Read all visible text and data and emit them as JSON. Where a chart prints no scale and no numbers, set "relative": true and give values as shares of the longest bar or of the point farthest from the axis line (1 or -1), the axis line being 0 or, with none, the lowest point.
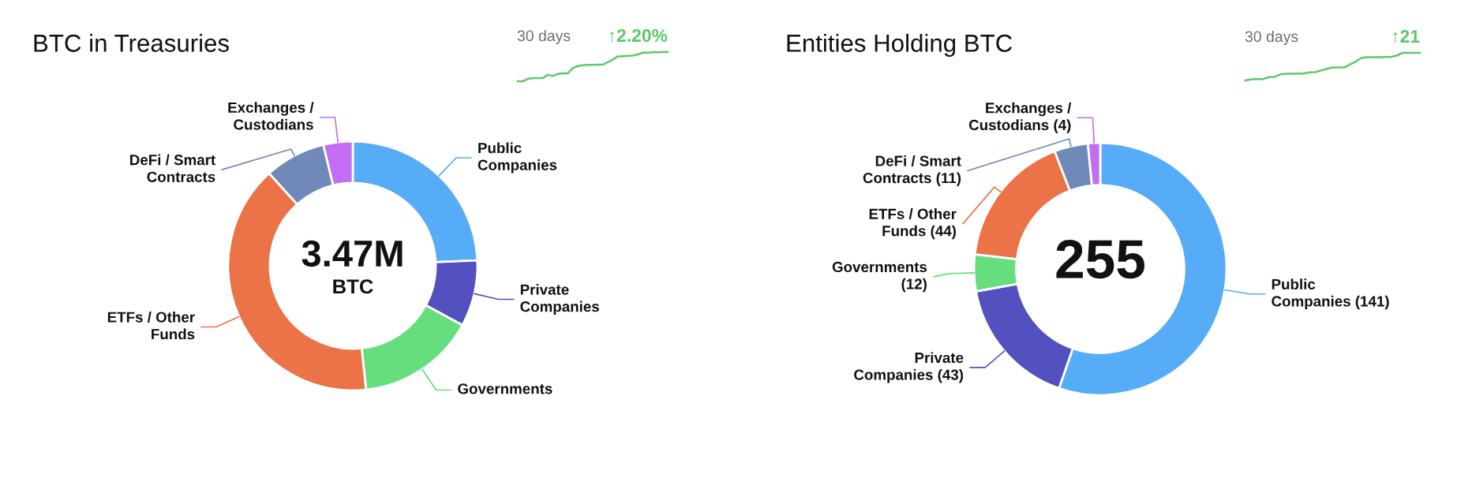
{
  "chart_data": [
    {
      "type": "other",
      "title": "BTC in Treasuries"
    },
    {
      "type": "line",
      "title": "30 days",
      "relative": true,
      "categories": [
        null,
        null,
        null,
        null,
        null,
        null,
        null,
        null,
        null,
        null,
        null,
        null,
        null,
        null,
        null,
        null,
        null,
        null,
        null,
        null,
        null,
        null,
        null,
        null,
        null,
        null,
        null,
        null,
        null,
        null,
        null
      ],
      "series": [
        {
          "color": "#5cc96b",
          "values": [
            0,
            0,
            0.08,
            0.11,
            0.11,
            0.11,
            0.22,
            0.18,
            0.25,
            0.27,
            0.27,
            0.45,
            0.52,
            0.55,
            0.56,
            0.56,
            0.57,
            0.57,
            0.65,
            0.74,
            0.85,
            0.86,
            0.87,
            0.88,
            0.92,
            0.98,
            0.98,
            0.99,
            0.99,
            1,
            1
          ]
        }
      ],
      "annotations": [
        "↑2.20%"
      ]
    },
    {
      "type": "donut",
      "categories": [
        "Public Companies",
        "Private Companies",
        "Governments",
        "ETFs / Other Funds",
        "DeFi / Smart Contracts",
        "Exchanges / Custodians"
      ],
      "values": [
        24.3,
        8.6,
        15.4,
        40.0,
        7.9,
        3.8
      ],
      "colors": [
        "#56acf6",
        "#5350bf",
        "#66de7e",
        "#ec7347",
        "#7189b9",
        "#c36ef2"
      ],
      "annotations": [
        "3.47M",
        "BTC"
      ]
    },
    {
      "type": "other",
      "title": "Entities Holding BTC"
    },
    {
      "type": "line",
      "title": "30 days",
      "relative": true,
      "categories": [
        null,
        null,
        null,
        null,
        null,
        null,
        null,
        null,
        null,
        null,
        null,
        null,
        null,
        null,
        null,
        null,
        null,
        null,
        null,
        null,
        null,
        null,
        null,
        null,
        null,
        null,
        null,
        null,
        null,
        null,
        null
      ],
      "series": [
        {
          "color": "#5cc96b",
          "values": [
            0,
            0.04,
            0.05,
            0.05,
            0.12,
            0.13,
            0.22,
            0.24,
            0.24,
            0.25,
            0.25,
            0.29,
            0.3,
            0.36,
            0.42,
            0.47,
            0.47,
            0.47,
            0.58,
            0.69,
            0.82,
            0.84,
            0.84,
            0.84,
            0.85,
            0.85,
            0.9,
            1,
            1,
            1,
            1
          ]
        }
      ],
      "annotations": [
        "↑21"
      ]
    },
    {
      "type": "donut",
      "categories": [
        "Public Companies",
        "Private Companies",
        "Governments",
        "ETFs / Other Funds",
        "DeFi / Smart Contracts",
        "Exchanges / Custodians"
      ],
      "values": [
        141,
        43,
        12,
        44,
        11,
        4
      ],
      "value_labels": [
        "(141)",
        "(43)",
        "(12)",
        "(44)",
        "(11)",
        "(4)"
      ],
      "colors": [
        "#56acf6",
        "#5350bf",
        "#66de7e",
        "#ec7347",
        "#7189b9",
        "#c36ef2"
      ],
      "annotations": [
        "255"
      ]
    }
  ]
}
